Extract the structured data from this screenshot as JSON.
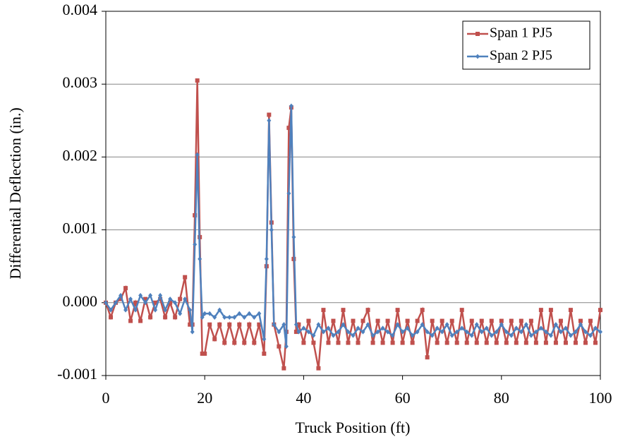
{
  "chart_data": {
    "type": "line",
    "x_label": "Truck Position (ft)",
    "y_label": "Differential Deflection (in.)",
    "xlim": [
      0,
      100
    ],
    "xticks": [
      0,
      20,
      40,
      60,
      80,
      100
    ],
    "ylim": [
      -0.001,
      0.004
    ],
    "yticks": [
      -0.001,
      {
        "value": 0,
        "label": "0.000"
      },
      0.001,
      0.002,
      0.003,
      0.004
    ],
    "grid": true,
    "legend": "top-right",
    "x": [
      0,
      1,
      2,
      3,
      4,
      5,
      6,
      7,
      8,
      9,
      10,
      11,
      12,
      13,
      14,
      15,
      16,
      17,
      17.5,
      18,
      18.5,
      19,
      19.5,
      20,
      21,
      22,
      23,
      24,
      25,
      26,
      27,
      28,
      29,
      30,
      31,
      32,
      32.5,
      33,
      33.5,
      34,
      35,
      36,
      36.5,
      37,
      37.5,
      38,
      38.5,
      39,
      40,
      41,
      42,
      43,
      44,
      45,
      46,
      47,
      48,
      49,
      50,
      51,
      52,
      53,
      54,
      55,
      56,
      57,
      58,
      59,
      60,
      61,
      62,
      63,
      64,
      65,
      66,
      67,
      68,
      69,
      70,
      71,
      72,
      73,
      74,
      75,
      76,
      77,
      78,
      79,
      80,
      81,
      82,
      83,
      84,
      85,
      86,
      87,
      88,
      89,
      90,
      91,
      92,
      93,
      94,
      95,
      96,
      97,
      98,
      99,
      100
    ],
    "series": [
      {
        "name": "Span 1 PJ5",
        "color": "#c0504d",
        "marker": "square",
        "values": [
          0,
          -0.0002,
          0,
          5e-05,
          0.0002,
          -0.00025,
          0,
          -0.00025,
          5e-05,
          -0.0002,
          0,
          5e-05,
          -0.0002,
          0,
          -0.0002,
          5e-05,
          0.00035,
          -0.0003,
          -0.0003,
          0.0012,
          0.00305,
          0.0009,
          -0.0007,
          -0.0007,
          -0.0003,
          -0.0005,
          -0.0003,
          -0.00055,
          -0.0003,
          -0.00055,
          -0.0003,
          -0.00055,
          -0.0003,
          -0.00055,
          -0.0003,
          -0.0007,
          0.0005,
          0.00258,
          0.0011,
          -0.0003,
          -0.0006,
          -0.0009,
          -0.0004,
          0.0024,
          0.00268,
          0.0006,
          -0.0004,
          -0.0003,
          -0.00055,
          -0.00025,
          -0.00055,
          -0.0009,
          -0.0001,
          -0.00055,
          -0.00025,
          -0.00055,
          -0.0001,
          -0.00055,
          -0.00025,
          -0.00055,
          -0.00025,
          -0.0001,
          -0.00055,
          -0.00025,
          -0.00055,
          -0.00025,
          -0.00055,
          -0.0001,
          -0.00055,
          -0.00025,
          -0.00055,
          -0.00025,
          -0.0001,
          -0.00075,
          -0.00025,
          -0.00055,
          -0.00025,
          -0.00055,
          -0.00025,
          -0.00055,
          -0.0001,
          -0.00055,
          -0.00025,
          -0.00055,
          -0.00025,
          -0.00055,
          -0.00025,
          -0.00055,
          -0.00025,
          -0.00055,
          -0.00025,
          -0.00055,
          -0.00025,
          -0.00055,
          -0.00025,
          -0.00055,
          -0.0001,
          -0.00055,
          -0.0001,
          -0.00055,
          -0.00025,
          -0.00055,
          -0.0001,
          -0.00055,
          -0.00025,
          -0.00055,
          -0.00025,
          -0.00055,
          -0.0001
        ]
      },
      {
        "name": "Span 2 PJ5",
        "color": "#4f81bd",
        "marker": "diamond",
        "values": [
          0,
          -0.0001,
          0,
          0.0001,
          -0.0001,
          5e-05,
          -0.0001,
          0.0001,
          0,
          0.0001,
          -0.0001,
          0.0001,
          -0.0001,
          5e-05,
          0,
          -0.00015,
          5e-05,
          -0.0001,
          -0.0004,
          0.0008,
          0.00203,
          0.0006,
          -0.0002,
          -0.00015,
          -0.00015,
          -0.0002,
          -0.0001,
          -0.0002,
          -0.0002,
          -0.0002,
          -0.00015,
          -0.0002,
          -0.00015,
          -0.0002,
          -0.00015,
          -0.0005,
          0.0006,
          0.0025,
          0.001,
          -0.0003,
          -0.0004,
          -0.0003,
          -0.0006,
          0.0015,
          0.0027,
          0.0009,
          -0.0003,
          -0.0004,
          -0.00035,
          -0.0004,
          -0.00045,
          -0.0003,
          -0.0004,
          -0.00035,
          -0.00045,
          -0.0004,
          -0.0003,
          -0.0004,
          -0.00045,
          -0.00035,
          -0.0004,
          -0.0003,
          -0.00045,
          -0.0004,
          -0.00035,
          -0.0004,
          -0.00045,
          -0.0003,
          -0.0004,
          -0.00035,
          -0.00045,
          -0.0004,
          -0.0003,
          -0.0004,
          -0.00045,
          -0.00035,
          -0.0004,
          -0.0003,
          -0.00045,
          -0.0004,
          -0.00035,
          -0.0004,
          -0.00045,
          -0.0003,
          -0.0004,
          -0.00035,
          -0.00045,
          -0.0004,
          -0.0003,
          -0.0004,
          -0.00045,
          -0.00035,
          -0.0004,
          -0.0003,
          -0.00045,
          -0.0004,
          -0.00035,
          -0.0004,
          -0.00045,
          -0.0003,
          -0.0004,
          -0.00035,
          -0.00045,
          -0.0004,
          -0.0003,
          -0.0004,
          -0.00045,
          -0.00035,
          -0.0004
        ]
      }
    ]
  }
}
